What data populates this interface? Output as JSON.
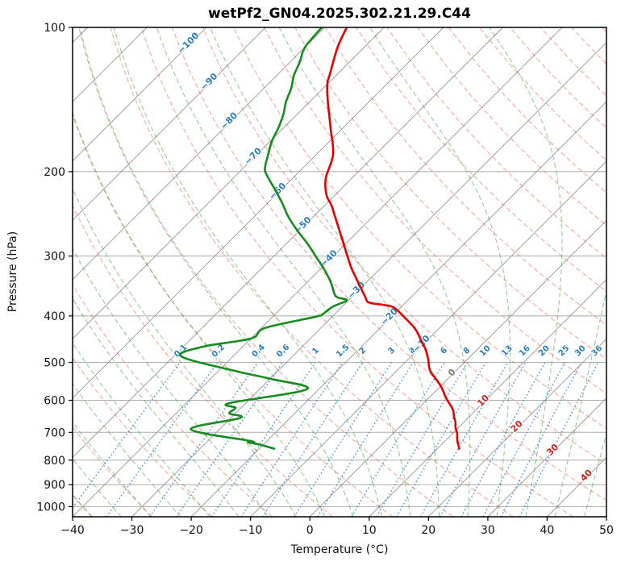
{
  "figure": {
    "title": "wetPf2_GN04.2025.302.21.29.C44"
  },
  "chart_data": {
    "type": "line",
    "variant": "skew-t-log-p",
    "title": "wetPf2_GN04.2025.302.21.29.C44",
    "xlabel": "Temperature (°C)",
    "ylabel": "Pressure (hPa)",
    "xlim": [
      -40,
      50
    ],
    "pressure_lim": [
      1050,
      100
    ],
    "skew_degrees": 45,
    "grid": true,
    "x_ticks": [
      -40,
      -30,
      -20,
      -10,
      0,
      10,
      20,
      30,
      40,
      50
    ],
    "x_tick_labels": [
      "−40",
      "−30",
      "−20",
      "−10",
      "0",
      "10",
      "20",
      "30",
      "40",
      "50"
    ],
    "y_ticks": [
      100,
      200,
      300,
      400,
      500,
      600,
      700,
      800,
      900,
      1000
    ],
    "y_tick_labels": [
      "100",
      "200",
      "300",
      "400",
      "500",
      "600",
      "700",
      "800",
      "900",
      "1000"
    ],
    "series": [
      {
        "name": "temperature",
        "color": "#e60000",
        "points_p_t": [
          [
            100,
            -76.3
          ],
          [
            110,
            -74.5
          ],
          [
            125,
            -71.3
          ],
          [
            131,
            -70.1
          ],
          [
            142,
            -67.2
          ],
          [
            162,
            -62.1
          ],
          [
            184,
            -57.2
          ],
          [
            205,
            -54.6
          ],
          [
            217,
            -52.7
          ],
          [
            226,
            -51.0
          ],
          [
            235,
            -48.9
          ],
          [
            247,
            -46.6
          ],
          [
            263,
            -43.7
          ],
          [
            280,
            -40.8
          ],
          [
            299,
            -37.8
          ],
          [
            320,
            -34.6
          ],
          [
            341,
            -31.3
          ],
          [
            364,
            -27.9
          ],
          [
            375,
            -26.2
          ],
          [
            379,
            -23.6
          ],
          [
            384,
            -21.2
          ],
          [
            402,
            -17.8
          ],
          [
            426,
            -13.9
          ],
          [
            449,
            -11.1
          ],
          [
            470,
            -8.7
          ],
          [
            494,
            -6.5
          ],
          [
            521,
            -4.3
          ],
          [
            559,
            -0.1
          ],
          [
            593,
            2.9
          ],
          [
            627,
            6.0
          ],
          [
            649,
            7.4
          ],
          [
            665,
            8.5
          ],
          [
            682,
            9.4
          ],
          [
            704,
            10.8
          ],
          [
            726,
            11.9
          ],
          [
            757,
            13.7
          ]
        ]
      },
      {
        "name": "dewpoint",
        "color": "#168c1e",
        "points_p_t": [
          [
            100,
            -80.5
          ],
          [
            110,
            -80.0
          ],
          [
            118,
            -78.4
          ],
          [
            126,
            -77.1
          ],
          [
            134,
            -75.4
          ],
          [
            143,
            -74.0
          ],
          [
            152,
            -72.3
          ],
          [
            162,
            -70.9
          ],
          [
            173,
            -69.7
          ],
          [
            185,
            -68.0
          ],
          [
            197,
            -66.3
          ],
          [
            204,
            -64.7
          ],
          [
            217,
            -61.3
          ],
          [
            232,
            -57.7
          ],
          [
            248,
            -54.3
          ],
          [
            264,
            -50.7
          ],
          [
            282,
            -46.6
          ],
          [
            301,
            -42.8
          ],
          [
            321,
            -39.1
          ],
          [
            341,
            -35.9
          ],
          [
            364,
            -32.8
          ],
          [
            371,
            -30.3
          ],
          [
            383,
            -31.6
          ],
          [
            397,
            -32.0
          ],
          [
            402,
            -32.9
          ],
          [
            424,
            -39.4
          ],
          [
            446,
            -40.0
          ],
          [
            464,
            -46.8
          ],
          [
            486,
            -48.7
          ],
          [
            521,
            -37.2
          ],
          [
            541,
            -30.0
          ],
          [
            569,
            -22.0
          ],
          [
            608,
            -32.7
          ],
          [
            622,
            -30.9
          ],
          [
            639,
            -31.0
          ],
          [
            653,
            -28.4
          ],
          [
            690,
            -34.8
          ],
          [
            730,
            -22.7
          ],
          [
            734,
            -23.0
          ],
          [
            742,
            -20.7
          ],
          [
            757,
            -17.5
          ]
        ]
      }
    ],
    "isotherms": {
      "start": -120,
      "end": 50,
      "step": 10,
      "color": "#969696"
    },
    "isotherm_labels": [
      {
        "value": -100,
        "label": "−100",
        "p": 108,
        "color": "#2b7dbb"
      },
      {
        "value": -90,
        "label": "−90",
        "p": 130,
        "color": "#2b7dbb"
      },
      {
        "value": -80,
        "label": "−80",
        "p": 157,
        "color": "#2b7dbb"
      },
      {
        "value": -70,
        "label": "−70",
        "p": 186,
        "color": "#2b7dbb"
      },
      {
        "value": -60,
        "label": "−60",
        "p": 220,
        "color": "#2b7dbb"
      },
      {
        "value": -50,
        "label": "−50",
        "p": 259,
        "color": "#2b7dbb"
      },
      {
        "value": -40,
        "label": "−40",
        "p": 304,
        "color": "#2b7dbb"
      },
      {
        "value": -30,
        "label": "−30",
        "p": 354,
        "color": "#2b7dbb"
      },
      {
        "value": -20,
        "label": "−20",
        "p": 402,
        "color": "#2b7dbb"
      },
      {
        "value": -10,
        "label": "−10",
        "p": 458,
        "color": "#2b7dbb"
      },
      {
        "value": 0,
        "label": "0",
        "p": 526,
        "color": "#7a7a7a"
      },
      {
        "value": 10,
        "label": "10",
        "p": 602,
        "color": "#c42622"
      },
      {
        "value": 20,
        "label": "20",
        "p": 681,
        "color": "#c42622"
      },
      {
        "value": 30,
        "label": "30",
        "p": 762,
        "color": "#c42622"
      },
      {
        "value": 40,
        "label": "40",
        "p": 862,
        "color": "#c42622"
      }
    ],
    "dry_adiabats": {
      "theta_start": -40,
      "theta_end": 190,
      "step": 10,
      "color": "#e8543a",
      "opacity": 0.5
    },
    "moist_adiabats": {
      "t0_start": -40,
      "t0_end": 45,
      "step": 5,
      "color": "#2d9b2d",
      "opacity": 0.5
    },
    "mixing_ratio": {
      "values": [
        0.1,
        0.2,
        0.4,
        0.6,
        1,
        1.5,
        2,
        3,
        4,
        6,
        8,
        10,
        13,
        16,
        20,
        25,
        30,
        36
      ],
      "labels": [
        "0.1",
        "0.2",
        "0.4",
        "0.6",
        "1",
        "1.5",
        "2",
        "3",
        "4",
        "6",
        "8",
        "10",
        "13",
        "16",
        "20",
        "25",
        "30",
        "36"
      ],
      "top_pressure": 500,
      "label_pressure": 477,
      "color": "#4a90d9",
      "label_color": "#2b7dbb"
    },
    "gridline_color": "#ababab",
    "legend": null
  }
}
